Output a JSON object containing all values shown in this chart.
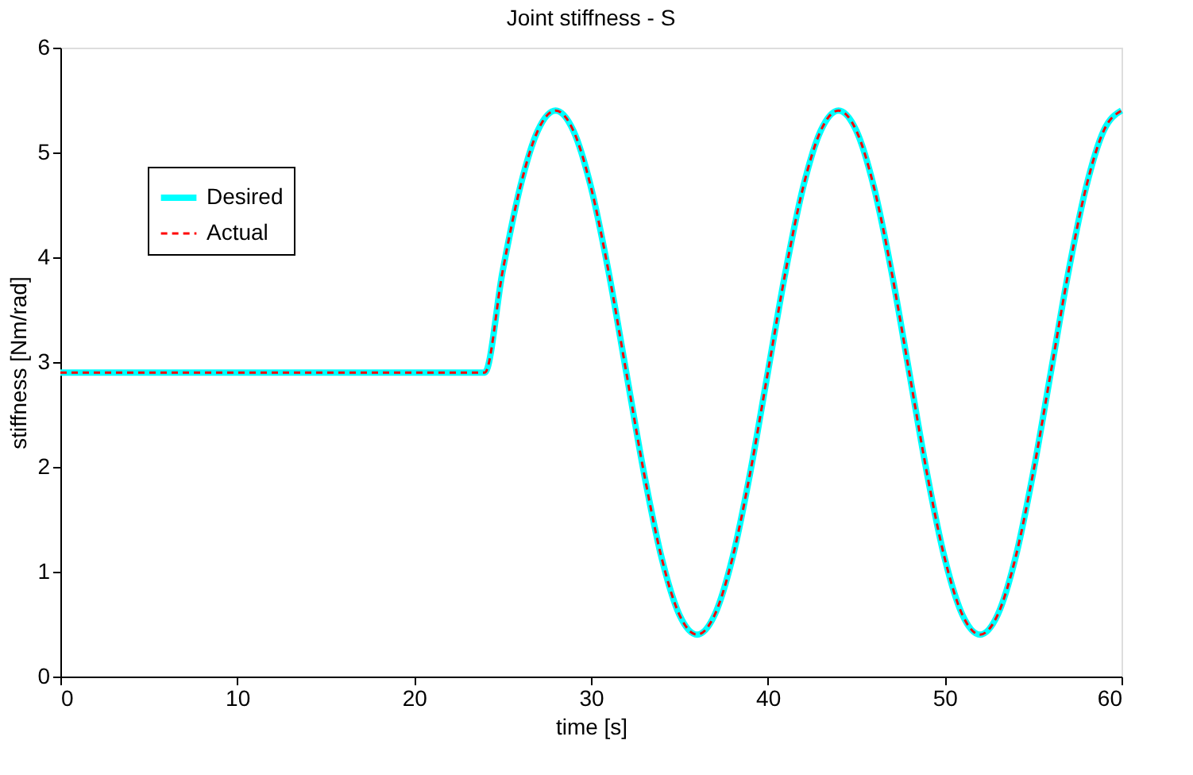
{
  "chart_data": {
    "type": "line",
    "title": "Joint stiffness - S",
    "xlabel": "time [s]",
    "ylabel": "stiffness [Nm/rad]",
    "x": [
      0,
      24,
      25,
      26,
      27,
      28,
      29,
      30,
      31,
      32,
      33,
      34,
      35,
      36,
      37,
      38,
      39,
      40,
      41,
      42,
      43,
      44,
      45,
      46,
      47,
      48,
      49,
      50,
      51,
      52,
      53,
      54,
      55,
      56,
      57,
      58,
      59,
      60
    ],
    "series": [
      {
        "name": "Desired",
        "color": "#00ffff",
        "line_style": "solid",
        "values": [
          2.9,
          2.9,
          3.86,
          4.67,
          5.21,
          5.4,
          5.21,
          4.67,
          3.86,
          2.9,
          1.94,
          1.13,
          0.59,
          0.4,
          0.59,
          1.13,
          1.94,
          2.9,
          3.86,
          4.67,
          5.21,
          5.4,
          5.21,
          4.67,
          3.86,
          2.9,
          1.94,
          1.13,
          0.59,
          0.4,
          0.59,
          1.13,
          1.94,
          2.9,
          3.86,
          4.67,
          5.21,
          5.4
        ]
      },
      {
        "name": "Actual",
        "color": "#ff0000",
        "line_style": "dashed",
        "values": [
          2.9,
          2.9,
          3.86,
          4.67,
          5.21,
          5.4,
          5.21,
          4.67,
          3.86,
          2.9,
          1.94,
          1.13,
          0.59,
          0.4,
          0.59,
          1.13,
          1.94,
          2.9,
          3.86,
          4.67,
          5.21,
          5.4,
          5.21,
          4.67,
          3.86,
          2.9,
          1.94,
          1.13,
          0.59,
          0.4,
          0.59,
          1.13,
          1.94,
          2.9,
          3.86,
          4.67,
          5.21,
          5.4
        ]
      }
    ],
    "xlim": [
      0,
      60
    ],
    "xticks": [
      0,
      10,
      20,
      30,
      40,
      50,
      60
    ],
    "ylim": [
      0,
      6
    ],
    "yticks": [
      0,
      1,
      2,
      3,
      4,
      5,
      6
    ],
    "grid": false,
    "legend": "top left",
    "marker": "none"
  }
}
